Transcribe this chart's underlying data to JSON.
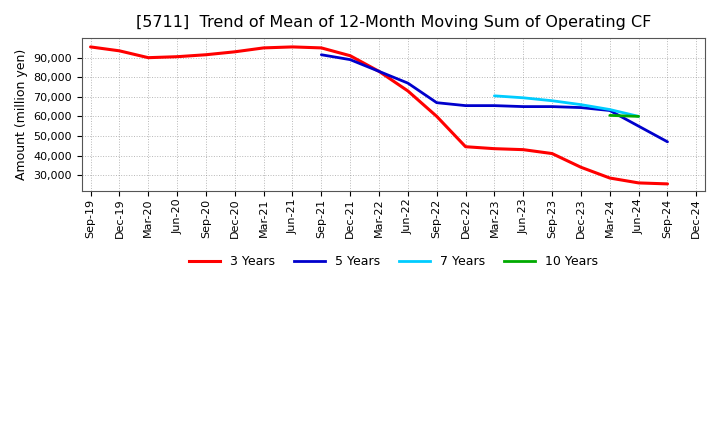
{
  "title": "[5711]  Trend of Mean of 12-Month Moving Sum of Operating CF",
  "ylabel": "Amount (million yen)",
  "background_color": "#ffffff",
  "plot_bg_color": "#ffffff",
  "grid_color": "#888888",
  "title_fontsize": 11.5,
  "label_fontsize": 9,
  "tick_fontsize": 8,
  "series": {
    "3yr": {
      "color": "#ff0000",
      "label": "3 Years",
      "x": [
        0,
        1,
        2,
        3,
        4,
        5,
        6,
        7,
        8,
        9,
        10,
        11,
        12,
        13,
        14,
        15,
        16,
        17,
        18,
        19,
        20
      ],
      "y": [
        95500,
        93500,
        90000,
        90500,
        91500,
        93000,
        95000,
        95500,
        95000,
        91000,
        83000,
        73000,
        60000,
        44500,
        43500,
        43000,
        41000,
        34000,
        28500,
        26000,
        25500
      ]
    },
    "5yr": {
      "color": "#0000cc",
      "label": "5 Years",
      "x": [
        8,
        9,
        10,
        11,
        12,
        13,
        14,
        15,
        16,
        17,
        18,
        19,
        20
      ],
      "y": [
        91500,
        89000,
        83000,
        77000,
        67000,
        65500,
        65500,
        65000,
        65000,
        64500,
        63000,
        55000,
        47000
      ]
    },
    "7yr": {
      "color": "#00ccff",
      "label": "7 Years",
      "x": [
        14,
        15,
        16,
        17,
        18,
        19
      ],
      "y": [
        70500,
        69500,
        68000,
        66000,
        63500,
        60000
      ]
    },
    "10yr": {
      "color": "#00aa00",
      "label": "10 Years",
      "x": [
        18,
        19
      ],
      "y": [
        60500,
        60000
      ]
    }
  },
  "xtick_labels": [
    "Sep-19",
    "Dec-19",
    "Mar-20",
    "Jun-20",
    "Sep-20",
    "Dec-20",
    "Mar-21",
    "Jun-21",
    "Sep-21",
    "Dec-21",
    "Mar-22",
    "Jun-22",
    "Sep-22",
    "Dec-22",
    "Mar-23",
    "Jun-23",
    "Sep-23",
    "Dec-23",
    "Mar-24",
    "Jun-24",
    "Sep-24",
    "Dec-24"
  ],
  "xlim": [
    -0.3,
    21.3
  ],
  "ylim": [
    22000,
    100000
  ],
  "yticks": [
    30000,
    40000,
    50000,
    60000,
    70000,
    80000,
    90000
  ]
}
